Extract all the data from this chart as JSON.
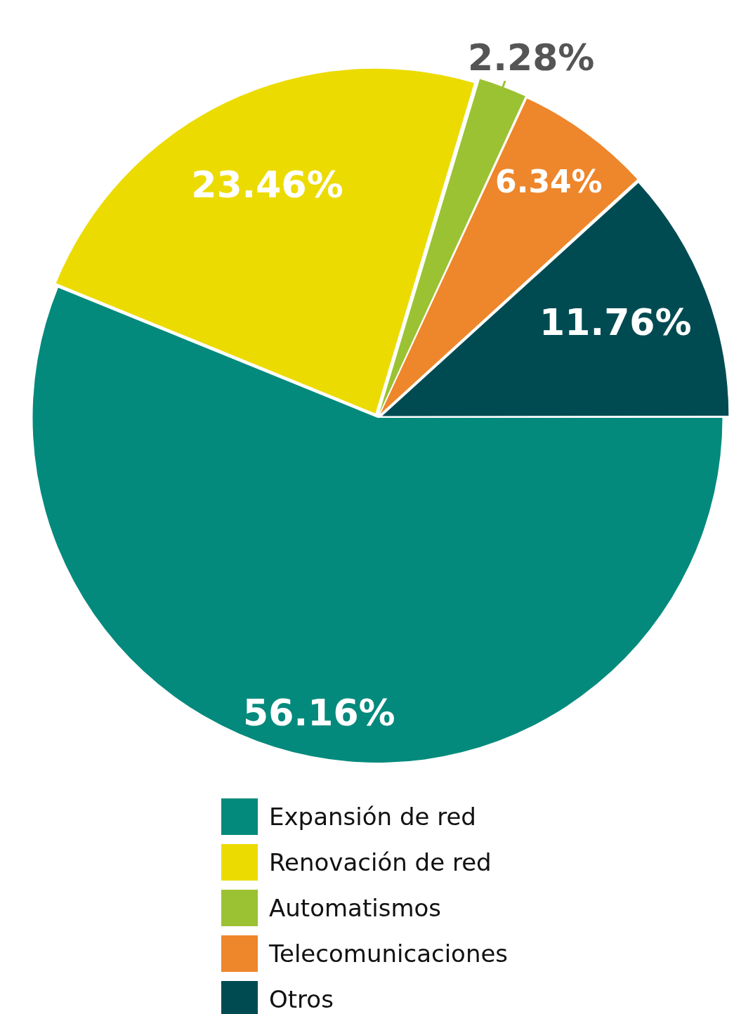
{
  "chart_data": {
    "type": "pie",
    "categories": [
      "Expansión de red",
      "Renovación de red",
      "Automatismos",
      "Telecomunicaciones",
      "Otros"
    ],
    "values": [
      56.16,
      23.46,
      2.28,
      6.34,
      11.76
    ],
    "colors": [
      "#038a7c",
      "#ecdb00",
      "#9bc232",
      "#ee862b",
      "#004b52"
    ],
    "value_labels": [
      "56.16%",
      "23.46%",
      "2.28%",
      "6.34%",
      "11.76%"
    ],
    "legend": "bottom"
  }
}
